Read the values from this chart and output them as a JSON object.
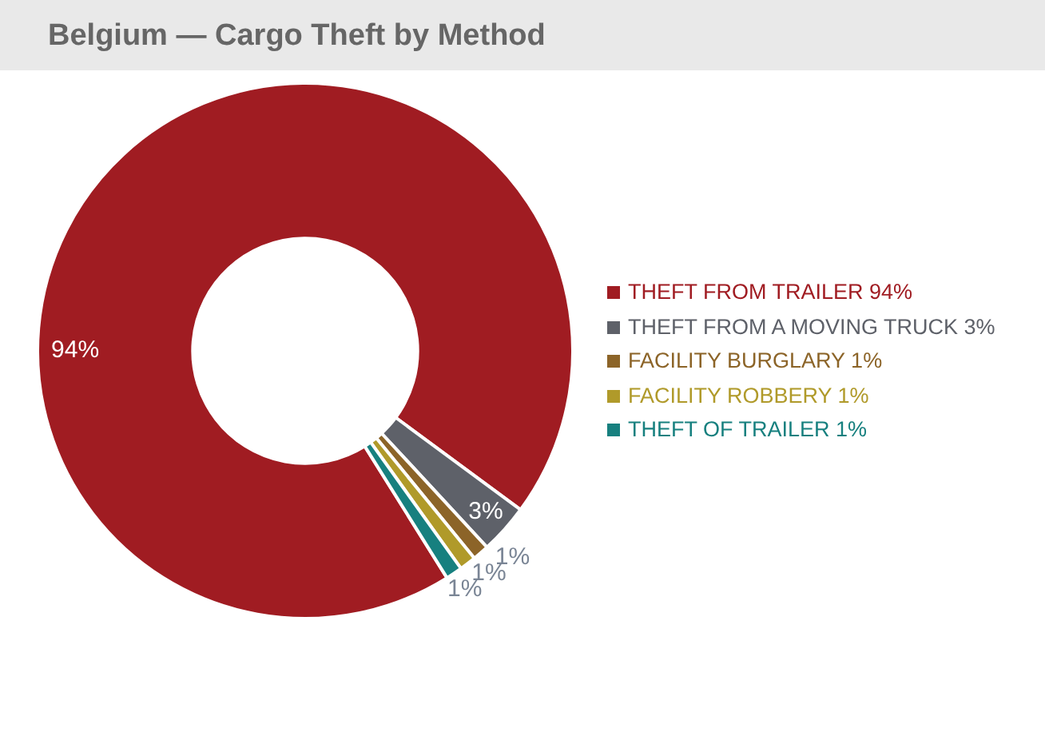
{
  "chart_data": {
    "type": "donut",
    "title": "Belgium — Cargo Theft by Method",
    "categories": [
      "THEFT FROM TRAILER 94%",
      "THEFT FROM A MOVING TRUCK 3%",
      "FACILITY BURGLARY 1%",
      "FACILITY ROBBERY 1%",
      "THEFT OF TRAILER 1%"
    ],
    "values": [
      94,
      3,
      1,
      1,
      1
    ],
    "colors": [
      "#a01c22",
      "#5e6169",
      "#8c6428",
      "#b09a2a",
      "#17807f"
    ],
    "value_labels": [
      "94%",
      "3%",
      "1%",
      "1%",
      "1%"
    ],
    "legend": "right"
  }
}
